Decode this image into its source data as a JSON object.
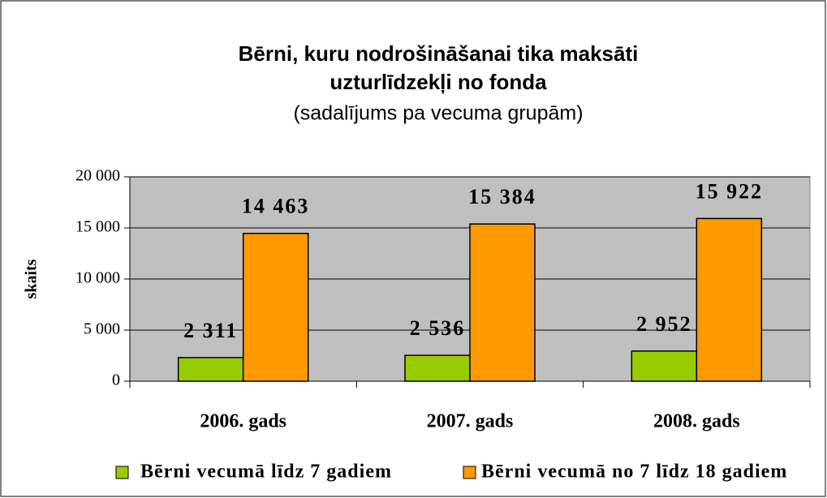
{
  "chart_data": {
    "type": "bar",
    "title": [
      "Bērni, kuru nodrošināšanai tika maksāti",
      "uzturlīdzekļi no fonda"
    ],
    "subtitle": "(sadalījums pa vecuma grupām)",
    "y_label": "skaits",
    "categories": [
      "2006. gads",
      "2007. gads",
      "2008. gads"
    ],
    "series": [
      {
        "name": "Bērni vecumā līdz 7 gadiem",
        "color": "#99cc00",
        "values": [
          2311,
          2536,
          2952
        ],
        "value_labels": [
          "2 311",
          "2 536",
          "2 952"
        ]
      },
      {
        "name": "Bērni vecumā no 7 līdz 18 gadiem",
        "color": "#ff9900",
        "values": [
          14463,
          15384,
          15922
        ],
        "value_labels": [
          "14 463",
          "15 384",
          "15 922"
        ]
      }
    ],
    "ylim": [
      0,
      20000
    ],
    "yticks": [
      0,
      {
        "value": 5000,
        "label": "5 000"
      },
      {
        "value": 10000,
        "label": "10 000"
      },
      {
        "value": 15000,
        "label": "15 000"
      },
      {
        "value": 20000,
        "label": "20 000"
      }
    ],
    "grid": true,
    "plot_background": "#c0c0c0",
    "legend": "bottom"
  }
}
